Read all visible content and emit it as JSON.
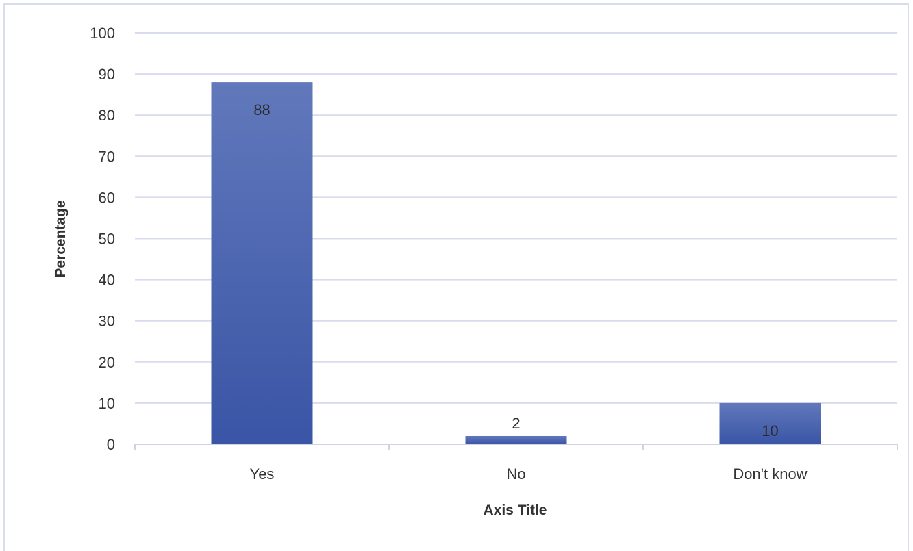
{
  "chart_data": {
    "type": "bar",
    "categories": [
      "Yes",
      "No",
      "Don't know"
    ],
    "values": [
      88,
      2,
      10
    ],
    "data_labels": [
      "88",
      "2",
      "10"
    ],
    "title": "",
    "xlabel": "Axis Title",
    "ylabel": "Percentage",
    "ylim": [
      0,
      100
    ],
    "yticks": [
      "0",
      "10",
      "20",
      "30",
      "40",
      "50",
      "60",
      "70",
      "80",
      "90",
      "100"
    ],
    "grid": true,
    "legend": "none",
    "colors": {
      "bar_top": "#6178BB",
      "bar_bottom": "#3A55A6",
      "grid": "#D9DCEE",
      "frame": "#D9DCEE",
      "axis": "#D0D3E2"
    }
  }
}
